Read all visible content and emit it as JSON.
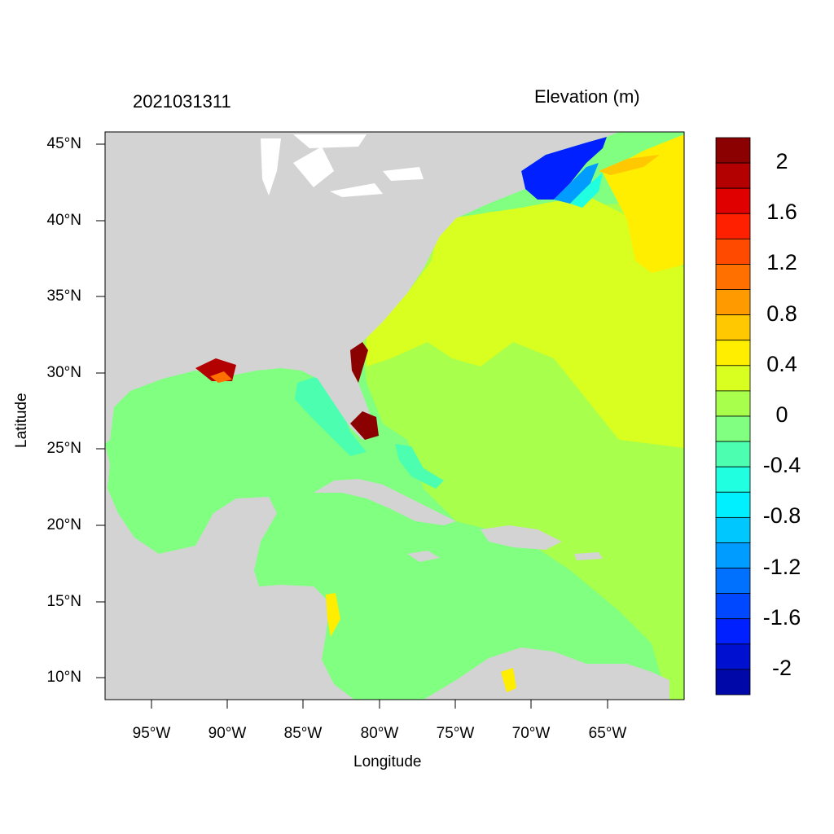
{
  "header": {
    "date": "2021031311",
    "colorbar_title": "Elevation (m)"
  },
  "axes": {
    "xlabel": "Longitude",
    "ylabel": "Latitude",
    "y_ticks": [
      "45°N",
      "40°N",
      "35°N",
      "30°N",
      "25°N",
      "20°N",
      "15°N",
      "10°N"
    ],
    "x_ticks": [
      "95°W",
      "90°W",
      "85°W",
      "80°W",
      "75°W",
      "70°W",
      "65°W"
    ]
  },
  "colorbar": {
    "labels": [
      "2",
      "1.6",
      "1.2",
      "0.8",
      "0.4",
      "0",
      "-0.4",
      "-0.8",
      "-1.2",
      "-1.6",
      "-2"
    ],
    "colors": [
      "#8b0000",
      "#b30000",
      "#e00000",
      "#ff2000",
      "#ff4a00",
      "#ff7000",
      "#ff9a00",
      "#ffc800",
      "#ffee00",
      "#d8ff20",
      "#a8ff4c",
      "#80ff80",
      "#4cffb0",
      "#20ffe0",
      "#00f0ff",
      "#00c8ff",
      "#009cff",
      "#0070ff",
      "#0048ff",
      "#0020ff",
      "#0010d0",
      "#0008a8"
    ]
  },
  "map": {
    "land_color": "#d3d3d3",
    "ocean_base_color": "#80ff80"
  }
}
